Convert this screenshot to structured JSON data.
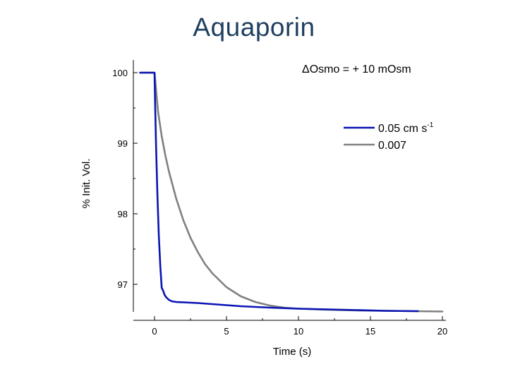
{
  "slide": {
    "title": "Aquaporin"
  },
  "chart_data": {
    "type": "line",
    "title": "",
    "annotation": "ΔOsmo = + 10 mOsm",
    "xlabel": "Time (s)",
    "ylabel": "% Init. Vol.",
    "xlim": [
      -1.5,
      20
    ],
    "ylim": [
      96.6,
      100.15
    ],
    "xticks": [
      0,
      5,
      10,
      15,
      20
    ],
    "yticks": [
      97,
      98,
      99,
      100
    ],
    "legend": {
      "placement": "top-right"
    },
    "series": [
      {
        "name": "0.05 cm s-1",
        "legend_text": "0.05 cm s",
        "legend_sup": "-1",
        "color": "#0a14b4",
        "x": [
          -1.0,
          -0.5,
          0.0,
          0.05,
          0.1,
          0.15,
          0.2,
          0.3,
          0.4,
          0.5,
          0.6,
          0.7,
          0.8,
          1.0,
          1.2,
          1.5,
          2,
          3,
          4,
          5,
          6,
          8,
          10,
          12,
          14,
          16,
          18.3
        ],
        "values": [
          100.0,
          100.0,
          100.0,
          99.5,
          99.04,
          98.63,
          98.27,
          97.69,
          97.26,
          96.95,
          96.91,
          96.85,
          96.82,
          96.78,
          96.76,
          96.75,
          96.745,
          96.735,
          96.72,
          96.705,
          96.69,
          96.67,
          96.655,
          96.645,
          96.635,
          96.625,
          96.62
        ]
      },
      {
        "name": "0.007",
        "legend_text": "0.007",
        "legend_sup": "",
        "color": "#808080",
        "x": [
          -1.0,
          -0.5,
          0.0,
          0.25,
          0.5,
          0.75,
          1.0,
          1.5,
          2,
          2.5,
          3,
          3.5,
          4,
          5,
          6,
          7,
          8,
          9,
          10,
          12,
          14,
          16,
          18,
          20
        ],
        "values": [
          100.0,
          100.0,
          100.0,
          99.44,
          99.1,
          98.83,
          98.6,
          98.22,
          97.91,
          97.66,
          97.46,
          97.29,
          97.16,
          96.96,
          96.83,
          96.75,
          96.7,
          96.67,
          96.655,
          96.64,
          96.63,
          96.625,
          96.62,
          96.615
        ]
      }
    ]
  }
}
